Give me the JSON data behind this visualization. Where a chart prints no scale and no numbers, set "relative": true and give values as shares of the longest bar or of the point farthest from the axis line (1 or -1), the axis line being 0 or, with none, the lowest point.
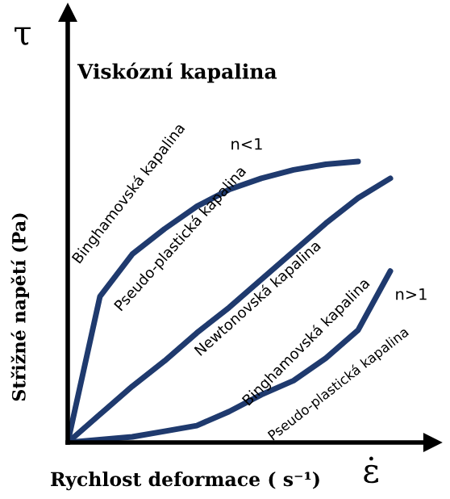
{
  "chart_data": {
    "type": "line",
    "relative": true,
    "title": "Viskózní kapalina",
    "xlabel": "Rychlost deformace ( s⁻¹)",
    "ylabel": "Střižné napětí (Pa)",
    "categories": [
      null,
      null,
      null,
      null,
      null,
      null,
      null,
      null,
      null,
      null,
      null
    ],
    "series": [
      {
        "color": "#1f3a6e",
        "values": [
          0,
          0.52,
          0.67,
          0.76,
          0.84,
          0.9,
          0.94,
          0.97,
          0.99,
          1.0,
          null
        ]
      },
      {
        "color": "#1f3a6e",
        "values": [
          0,
          0.1,
          0.2,
          0.29,
          0.39,
          0.48,
          0.58,
          0.68,
          0.78,
          0.87,
          0.94
        ]
      },
      {
        "color": "#1f3a6e",
        "values": [
          0,
          0.01,
          0.02,
          0.04,
          0.06,
          0.11,
          0.17,
          0.22,
          0.3,
          0.4,
          0.61
        ]
      }
    ],
    "annotations": [
      "τ",
      "ε̇",
      "n<1",
      "Binghamovská kapalina",
      "Pseudo-plastická kapalina",
      "Newtonovská kapalina",
      "Binghamovská kapalina",
      "n>1",
      "Pseudo-plastická kapalina"
    ],
    "legend": false,
    "marker": "none",
    "line_style": "solid"
  }
}
